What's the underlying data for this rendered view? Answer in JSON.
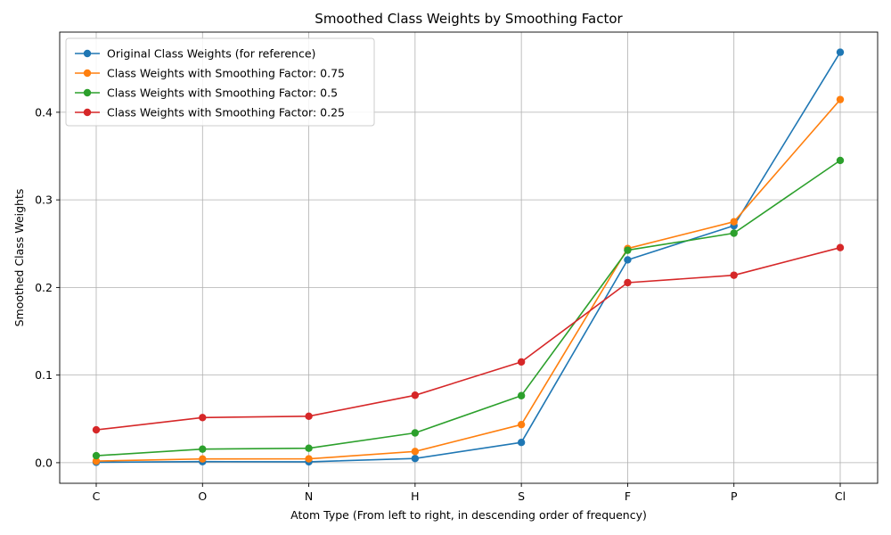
{
  "chart_data": {
    "type": "line",
    "title": "Smoothed Class Weights by Smoothing Factor",
    "xlabel": "Atom Type (From left to right, in descending order of frequency)",
    "ylabel": "Smoothed Class Weights",
    "categories": [
      "C",
      "O",
      "N",
      "H",
      "S",
      "F",
      "P",
      "Cl"
    ],
    "ylim": [
      -0.0235,
      0.4915
    ],
    "yticks": [
      0.0,
      0.1,
      0.2,
      0.3,
      0.4
    ],
    "ytick_labels": [
      "0.0",
      "0.1",
      "0.2",
      "0.3",
      "0.4"
    ],
    "grid": true,
    "legend_position": "upper-left",
    "series": [
      {
        "name": "Original Class Weights (for reference)",
        "color": "#1f77b4",
        "values": [
          0.0005,
          0.0012,
          0.001,
          0.0048,
          0.0231,
          0.2315,
          0.2705,
          0.4685
        ]
      },
      {
        "name": "Class Weights with Smoothing Factor: 0.75",
        "color": "#ff7f0e",
        "values": [
          0.0018,
          0.0043,
          0.0044,
          0.0128,
          0.0435,
          0.2445,
          0.275,
          0.4145
        ]
      },
      {
        "name": "Class Weights with Smoothing Factor: 0.5",
        "color": "#2ca02c",
        "values": [
          0.008,
          0.0155,
          0.0165,
          0.034,
          0.0765,
          0.2425,
          0.262,
          0.345
        ]
      },
      {
        "name": "Class Weights with Smoothing Factor: 0.25",
        "color": "#d62728",
        "values": [
          0.0375,
          0.0515,
          0.053,
          0.077,
          0.115,
          0.2055,
          0.214,
          0.2455
        ]
      }
    ]
  }
}
